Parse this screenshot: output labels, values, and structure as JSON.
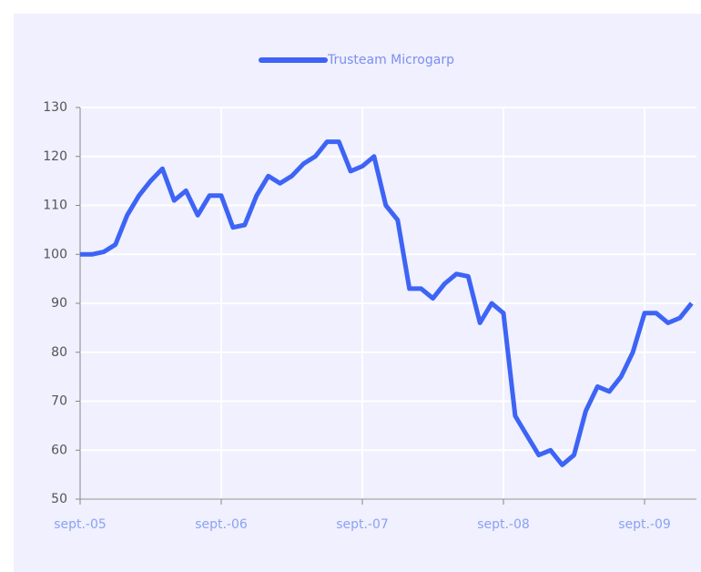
{
  "chart_data": {
    "type": "line",
    "categories": [
      "sept.-05",
      null,
      null,
      null,
      null,
      null,
      null,
      null,
      null,
      null,
      null,
      null,
      "sept.-06",
      null,
      null,
      null,
      null,
      null,
      null,
      null,
      null,
      null,
      null,
      null,
      "sept.-07",
      null,
      null,
      null,
      null,
      null,
      null,
      null,
      null,
      null,
      null,
      null,
      "sept.-08",
      null,
      null,
      null,
      null,
      null,
      null,
      null,
      null,
      null,
      null,
      null,
      "sept.-09",
      null,
      null,
      null,
      null
    ],
    "series": [
      {
        "name": "Trusteam Microgarp",
        "color": "#3d64f5",
        "values": [
          100,
          100,
          100.5,
          102,
          108,
          112,
          115,
          117.5,
          111,
          113,
          108,
          112,
          112,
          105.5,
          106,
          112,
          116,
          114.5,
          116,
          118.5,
          120,
          123,
          123,
          117,
          118,
          120,
          110,
          107,
          93,
          93,
          91,
          94,
          96,
          95.5,
          86,
          90,
          88,
          67,
          63,
          59,
          60,
          57,
          59,
          68,
          73,
          72,
          75,
          80,
          88,
          88,
          86,
          87,
          90
        ]
      }
    ],
    "ylim": [
      50,
      130
    ],
    "yticks": [
      50,
      60,
      70,
      80,
      90,
      100,
      110,
      120,
      130
    ],
    "grid": true,
    "legend": "top"
  }
}
